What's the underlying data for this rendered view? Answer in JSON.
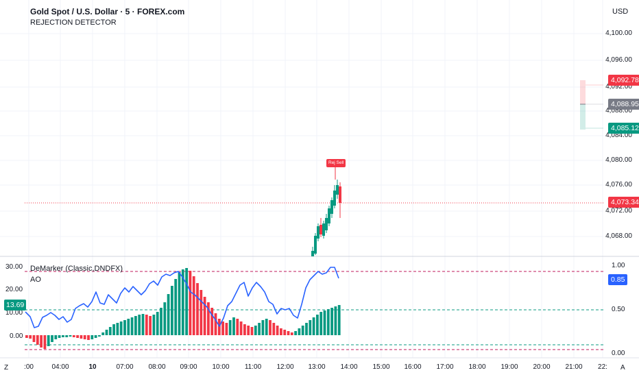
{
  "header": {
    "title": "Gold Spot / U.S. Dollar · 5 · FOREX.com",
    "subtitle": "REJECTION DETECTOR",
    "currency": "USD"
  },
  "price_axis": {
    "ticks": [
      "4,100.00",
      "4,096.00",
      "4,092.00",
      "4,088.00",
      "4,084.00",
      "4,080.00",
      "4,076.00",
      "4,072.00",
      "4,068.00"
    ],
    "badges": {
      "upper": "4,092.78",
      "middle": "4,088.95",
      "lower": "4,085.12",
      "current": "4,073.34"
    }
  },
  "signal": {
    "label": "Rej Sell"
  },
  "indicator": {
    "name": "DeMarker (Classic,DNDFX)",
    "sub_name": "AO",
    "left_ticks": [
      "30.00",
      "20.00",
      "10.00",
      "0.00"
    ],
    "right_ticks": [
      "1.00",
      "0.50",
      "0.00"
    ],
    "left_value": "13.69",
    "right_value": "0.85"
  },
  "time_axis": {
    "labels": [
      ":00",
      "04:00",
      "10",
      "07:00",
      "08:00",
      "09:00",
      "10:00",
      "11:00",
      "12:00",
      "13:00",
      "14:00",
      "15:00",
      "16:00",
      "17:00",
      "18:00",
      "19:00",
      "20:00",
      "21:00",
      "22:"
    ],
    "left_corner": "Z",
    "right_corner": "A"
  },
  "colors": {
    "up": "#089981",
    "down": "#f23645",
    "demarker_line": "#2962ff",
    "current_price_line": "#f23645",
    "level_line_red": "#c2185b",
    "level_line_green": "#089981"
  }
}
